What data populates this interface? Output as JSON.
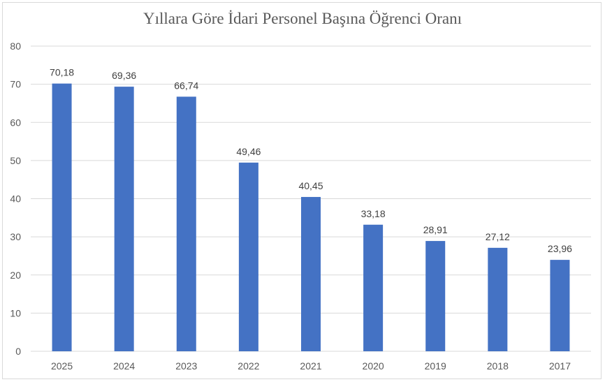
{
  "chart_data": {
    "type": "bar",
    "title": "Yıllara Göre İdari Personel Başına Öğrenci Oranı",
    "xlabel": "",
    "ylabel": "",
    "categories": [
      "2025",
      "2024",
      "2023",
      "2022",
      "2021",
      "2020",
      "2019",
      "2018",
      "2017"
    ],
    "values": [
      70.18,
      69.36,
      66.74,
      49.46,
      40.45,
      33.18,
      28.91,
      27.12,
      23.96
    ],
    "data_labels": [
      "70,18",
      "69,36",
      "66,74",
      "49,46",
      "40,45",
      "33,18",
      "28,91",
      "27,12",
      "23,96"
    ],
    "ylim": [
      0,
      80
    ],
    "yticks": [
      0,
      10,
      20,
      30,
      40,
      50,
      60,
      70,
      80
    ],
    "grid": true,
    "legend": "none",
    "bar_color": "#4472C4",
    "grid_color": "#d9d9d9"
  }
}
